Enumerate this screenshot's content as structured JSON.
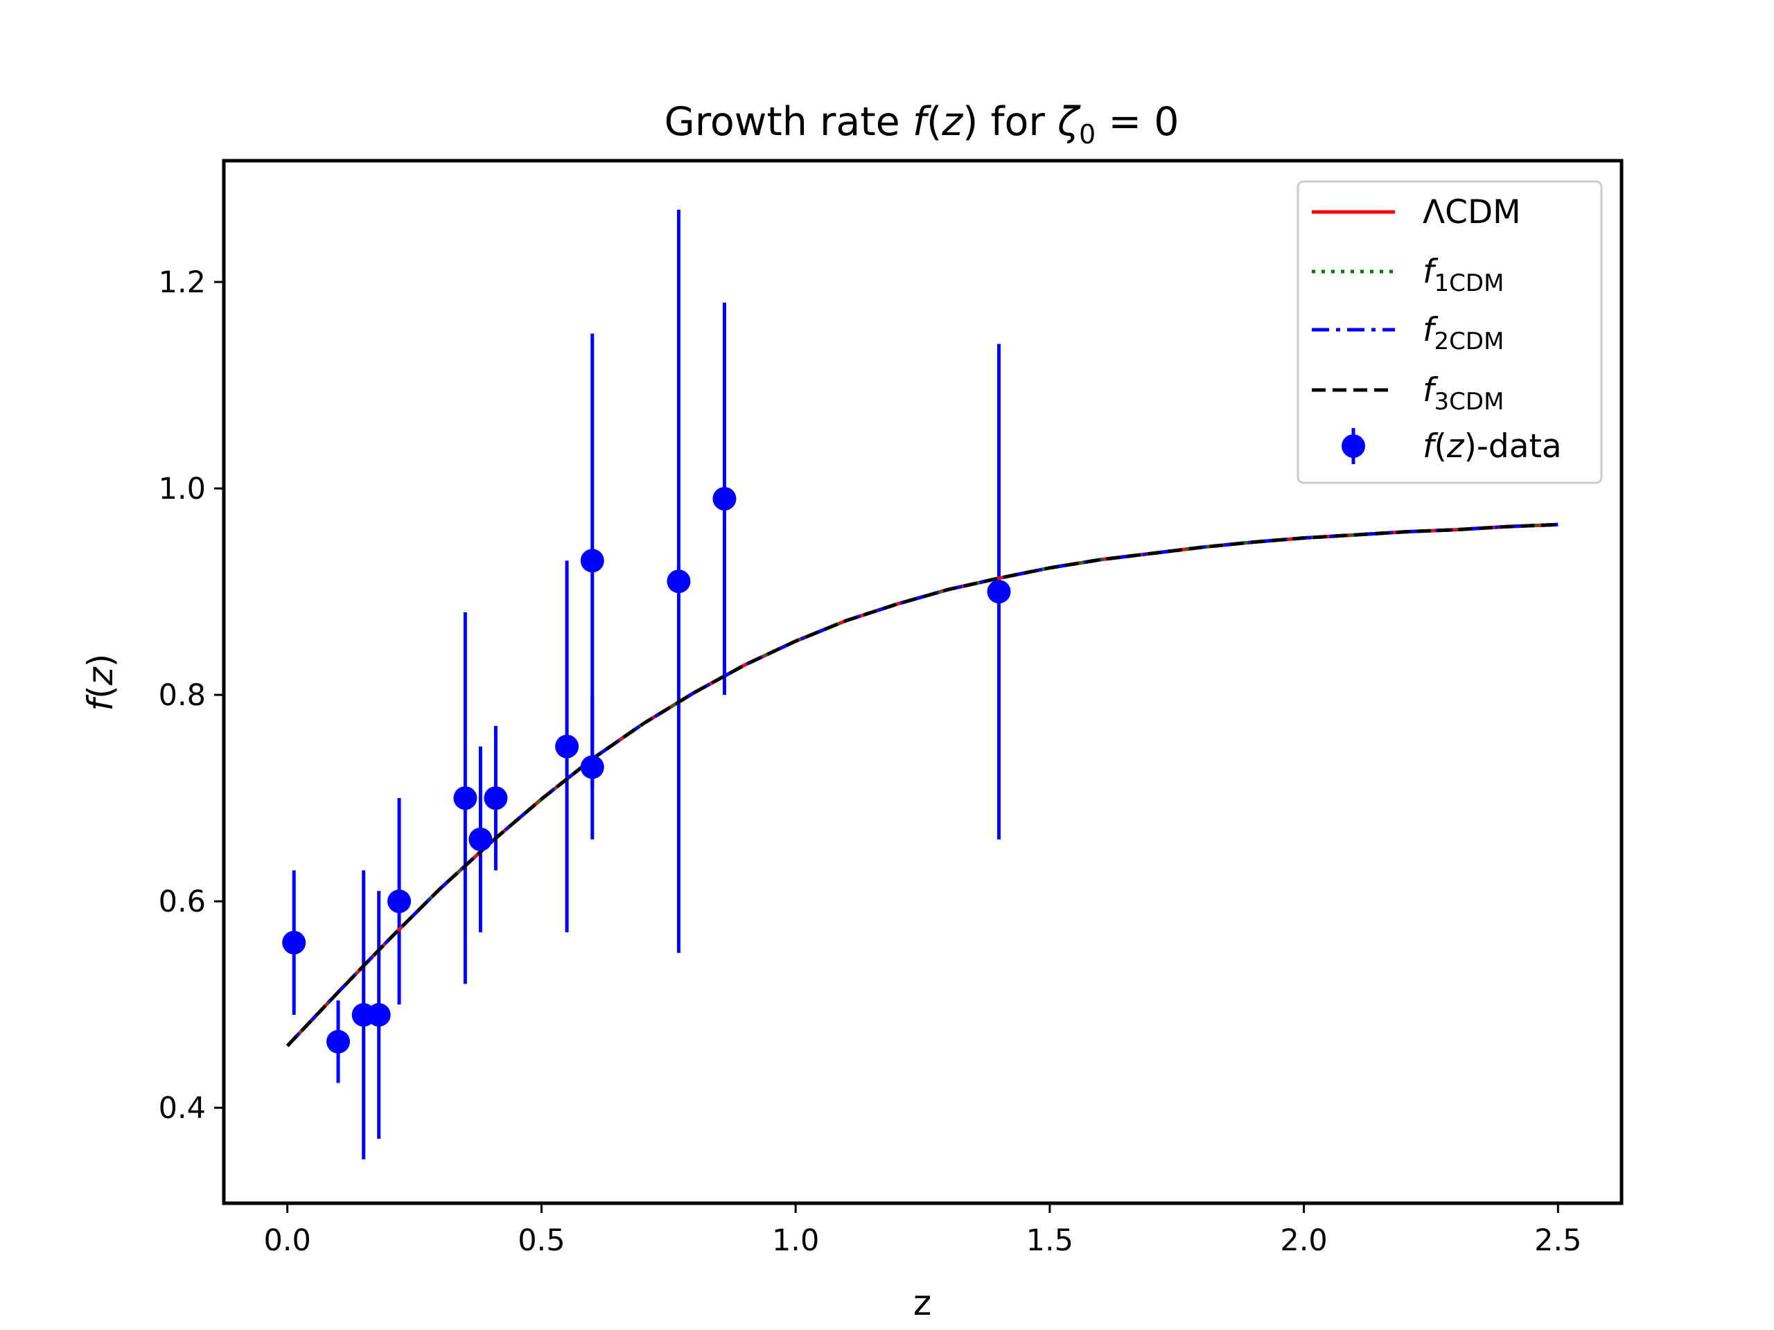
{
  "chart_data": {
    "type": "line",
    "title": {
      "prefix": "Growth rate ",
      "f": "f",
      "paren_open": "(",
      "z": "z",
      "paren_close": ")",
      "middle": " for ",
      "zeta": "ζ",
      "zeta_sub": "0",
      "equals": " = ",
      "value": "0"
    },
    "xlabel": "z",
    "ylabel": {
      "f": "f",
      "open": "(",
      "z": "z",
      "close": ")"
    },
    "xlim": [
      -0.125,
      2.625
    ],
    "ylim": [
      0.3075,
      1.3175
    ],
    "xticks": [
      0.0,
      0.5,
      1.0,
      1.5,
      2.0,
      2.5
    ],
    "xtick_labels": [
      "0.0",
      "0.5",
      "1.0",
      "1.5",
      "2.0",
      "2.5"
    ],
    "yticks": [
      0.4,
      0.6,
      0.8,
      1.0,
      1.2
    ],
    "ytick_labels": [
      "0.4",
      "0.6",
      "0.8",
      "1.0",
      "1.2"
    ],
    "grid": false,
    "legend_position": "top-right",
    "curve": {
      "x": [
        0.0,
        0.1,
        0.2,
        0.3,
        0.4,
        0.5,
        0.6,
        0.7,
        0.8,
        0.9,
        1.0,
        1.1,
        1.2,
        1.3,
        1.4,
        1.5,
        1.6,
        1.7,
        1.8,
        1.9,
        2.0,
        2.1,
        2.2,
        2.3,
        2.4,
        2.5
      ],
      "y": [
        0.46,
        0.512,
        0.563,
        0.612,
        0.657,
        0.699,
        0.738,
        0.772,
        0.802,
        0.829,
        0.852,
        0.872,
        0.888,
        0.902,
        0.913,
        0.923,
        0.931,
        0.937,
        0.943,
        0.948,
        0.952,
        0.955,
        0.958,
        0.96,
        0.963,
        0.965
      ]
    },
    "series": [
      {
        "name": "ΛCDM",
        "label_main": "ΛCDM",
        "label_sub": "",
        "color": "#ff0000",
        "style": "solid"
      },
      {
        "name": "f1CDM",
        "label_main": "f",
        "label_sub": "1CDM",
        "color": "#008000",
        "style": "dotted"
      },
      {
        "name": "f2CDM",
        "label_main": "f",
        "label_sub": "2CDM",
        "color": "#0000ff",
        "style": "dashdot"
      },
      {
        "name": "f3CDM",
        "label_main": "f",
        "label_sub": "3CDM",
        "color": "#000000",
        "style": "dashed"
      }
    ],
    "data_series": {
      "name": "f(z)-data",
      "label_parts": {
        "f": "f",
        "open": "(",
        "z": "z",
        "close": ")",
        "rest": "-data"
      },
      "color": "#0000ff",
      "points": [
        {
          "x": 0.013,
          "y": 0.56,
          "err": 0.07
        },
        {
          "x": 0.1,
          "y": 0.464,
          "err": 0.04
        },
        {
          "x": 0.15,
          "y": 0.49,
          "err": 0.14
        },
        {
          "x": 0.18,
          "y": 0.49,
          "err": 0.12
        },
        {
          "x": 0.22,
          "y": 0.6,
          "err": 0.1
        },
        {
          "x": 0.35,
          "y": 0.7,
          "err": 0.18
        },
        {
          "x": 0.38,
          "y": 0.66,
          "err": 0.09
        },
        {
          "x": 0.41,
          "y": 0.7,
          "err": 0.07
        },
        {
          "x": 0.55,
          "y": 0.75,
          "err": 0.18
        },
        {
          "x": 0.6,
          "y": 0.73,
          "err": 0.07
        },
        {
          "x": 0.6,
          "y": 0.93,
          "err": 0.22
        },
        {
          "x": 0.77,
          "y": 0.91,
          "err": 0.36
        },
        {
          "x": 0.86,
          "y": 0.99,
          "err": 0.19
        },
        {
          "x": 1.4,
          "y": 0.9,
          "err": 0.24
        }
      ]
    }
  }
}
